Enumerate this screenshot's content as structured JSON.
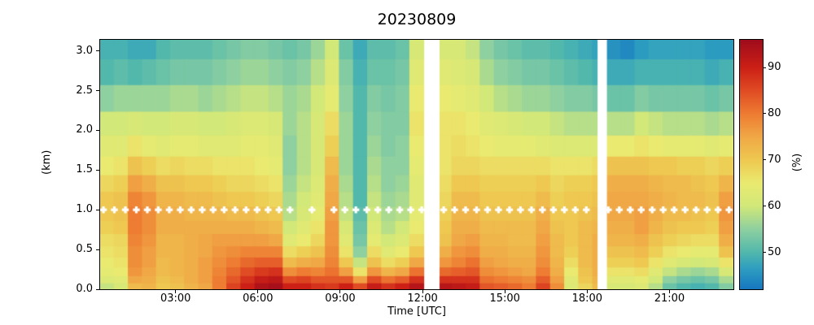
{
  "title": "20230809",
  "axes": {
    "xlabel": "Time [UTC]",
    "ylabel": "(km)",
    "x_range_hours": [
      0.25,
      23.33
    ],
    "y_range_km": [
      0,
      3.14
    ],
    "x_ticks": [
      {
        "t": 3,
        "label": "03:00"
      },
      {
        "t": 6,
        "label": "06:00"
      },
      {
        "t": 9,
        "label": "09:00"
      },
      {
        "t": 12,
        "label": "12:00"
      },
      {
        "t": 15,
        "label": "15:00"
      },
      {
        "t": 18,
        "label": "18:00"
      },
      {
        "t": 21,
        "label": "21:00"
      }
    ],
    "y_ticks": [
      {
        "v": 0.0,
        "label": "0.0"
      },
      {
        "v": 0.5,
        "label": "0.5"
      },
      {
        "v": 1.0,
        "label": "1.0"
      },
      {
        "v": 1.5,
        "label": "1.5"
      },
      {
        "v": 2.0,
        "label": "2.0"
      },
      {
        "v": 2.5,
        "label": "2.5"
      },
      {
        "v": 3.0,
        "label": "3.0"
      }
    ]
  },
  "colorbar": {
    "label": "(%)",
    "vmin": 42,
    "vmax": 96,
    "ticks": [
      {
        "v": 50,
        "label": "50"
      },
      {
        "v": 60,
        "label": "60"
      },
      {
        "v": 70,
        "label": "70"
      },
      {
        "v": 80,
        "label": "80"
      },
      {
        "v": 90,
        "label": "90"
      }
    ],
    "stops": [
      [
        42,
        "#1778c0"
      ],
      [
        46.5,
        "#2f9fc0"
      ],
      [
        50,
        "#52b8ac"
      ],
      [
        55,
        "#8fd0a0"
      ],
      [
        60,
        "#d2e878"
      ],
      [
        65,
        "#eaea70"
      ],
      [
        70,
        "#eec850"
      ],
      [
        75,
        "#f0a846"
      ],
      [
        80,
        "#ee7c32"
      ],
      [
        85,
        "#e04c24"
      ],
      [
        90,
        "#cc2016"
      ],
      [
        96,
        "#a00c1c"
      ]
    ]
  },
  "chart_data": {
    "type": "heatmap",
    "title": "20230809",
    "xlabel": "Time [UTC]",
    "ylabel": "(km)",
    "unit": "%",
    "value_range": [
      42,
      96
    ],
    "col_start_hour": 0.25,
    "col_width_hours": 0.5129,
    "row_centers_km": [
      0.04,
      0.12,
      0.22,
      0.34,
      0.47,
      0.62,
      0.78,
      0.95,
      1.13,
      1.33,
      1.55,
      1.8,
      2.08,
      2.4,
      2.75,
      3.05
    ],
    "columns": [
      [
        59,
        62,
        64,
        65,
        66,
        67,
        69,
        70,
        70,
        68,
        65,
        63,
        60,
        55,
        50,
        49
      ],
      [
        61,
        63,
        65,
        66,
        67,
        68,
        70,
        71,
        71,
        69,
        66,
        63,
        60,
        56,
        51,
        49
      ],
      [
        72,
        75,
        77,
        78,
        78,
        79,
        80,
        80,
        79,
        76,
        71,
        66,
        61,
        56,
        50,
        48
      ],
      [
        73,
        74,
        75,
        76,
        76,
        77,
        78,
        78,
        77,
        74,
        69,
        64,
        60,
        56,
        51,
        48
      ],
      [
        70,
        71,
        72,
        72,
        73,
        73,
        74,
        74,
        73,
        71,
        67,
        63,
        60,
        56,
        52,
        50
      ],
      [
        71,
        72,
        73,
        73,
        73,
        73,
        74,
        74,
        73,
        71,
        68,
        64,
        61,
        57,
        53,
        51
      ],
      [
        73,
        74,
        74,
        74,
        74,
        74,
        74,
        73,
        72,
        70,
        67,
        64,
        61,
        57,
        53,
        51
      ],
      [
        75,
        76,
        76,
        76,
        75,
        75,
        74,
        73,
        72,
        70,
        67,
        63,
        60,
        56,
        53,
        51
      ],
      [
        80,
        80,
        79,
        78,
        77,
        76,
        74,
        73,
        71,
        69,
        66,
        63,
        60,
        57,
        54,
        52
      ],
      [
        86,
        84,
        82,
        80,
        78,
        76,
        74,
        72,
        70,
        68,
        66,
        63,
        61,
        58,
        55,
        53
      ],
      [
        90,
        88,
        85,
        82,
        79,
        76,
        74,
        72,
        70,
        68,
        66,
        64,
        62,
        59,
        56,
        54
      ],
      [
        94,
        91,
        87,
        83,
        79,
        76,
        73,
        71,
        69,
        67,
        65,
        64,
        62,
        59,
        56,
        54
      ],
      [
        95,
        92,
        88,
        83,
        79,
        75,
        72,
        70,
        68,
        66,
        64,
        63,
        61,
        58,
        55,
        53
      ],
      [
        90,
        85,
        78,
        72,
        67,
        63,
        60,
        58,
        57,
        56,
        55,
        55,
        56,
        56,
        54,
        52
      ],
      [
        90,
        86,
        80,
        74,
        69,
        65,
        63,
        61,
        60,
        59,
        58,
        58,
        58,
        57,
        55,
        53
      ],
      [
        88,
        84,
        79,
        75,
        71,
        68,
        66,
        64,
        63,
        62,
        61,
        61,
        61,
        60,
        58,
        56
      ],
      [
        87,
        84,
        81,
        79,
        78,
        77,
        77,
        76,
        75,
        74,
        72,
        69,
        67,
        64,
        62,
        60
      ],
      [
        90,
        84,
        76,
        70,
        66,
        63,
        61,
        59,
        58,
        57,
        56,
        56,
        56,
        55,
        54,
        52
      ],
      [
        85,
        76,
        66,
        59,
        55,
        53,
        52,
        51,
        50,
        50,
        50,
        50,
        50,
        50,
        49,
        48
      ],
      [
        91,
        85,
        77,
        71,
        67,
        64,
        62,
        60,
        59,
        58,
        57,
        56,
        55,
        54,
        52,
        51
      ],
      [
        88,
        81,
        73,
        67,
        63,
        60,
        58,
        57,
        56,
        55,
        55,
        54,
        54,
        53,
        52,
        51
      ],
      [
        90,
        83,
        75,
        69,
        65,
        62,
        60,
        58,
        57,
        56,
        55,
        55,
        54,
        54,
        53,
        52
      ],
      [
        93,
        88,
        81,
        75,
        70,
        67,
        65,
        64,
        63,
        63,
        64,
        65,
        66,
        65,
        63,
        61
      ],
      [
        94,
        89,
        82,
        76,
        71,
        68,
        66,
        65,
        64,
        64,
        64,
        65,
        66,
        65,
        63,
        61
      ],
      [
        93,
        88,
        82,
        77,
        74,
        71,
        70,
        69,
        68,
        67,
        66,
        66,
        66,
        65,
        63,
        61
      ],
      [
        92,
        88,
        83,
        79,
        77,
        75,
        74,
        73,
        72,
        70,
        68,
        67,
        66,
        64,
        62,
        61
      ],
      [
        91,
        88,
        84,
        81,
        78,
        76,
        74,
        73,
        72,
        70,
        68,
        66,
        65,
        63,
        61,
        59
      ],
      [
        84,
        81,
        78,
        76,
        74,
        73,
        72,
        71,
        70,
        69,
        67,
        65,
        63,
        60,
        57,
        55
      ],
      [
        83,
        80,
        77,
        75,
        74,
        73,
        72,
        71,
        70,
        69,
        67,
        64,
        62,
        58,
        55,
        53
      ],
      [
        82,
        79,
        76,
        74,
        73,
        72,
        72,
        71,
        70,
        69,
        67,
        64,
        61,
        57,
        54,
        52
      ],
      [
        80,
        78,
        75,
        74,
        73,
        72,
        72,
        71,
        70,
        69,
        67,
        64,
        60,
        56,
        53,
        51
      ],
      [
        86,
        83,
        80,
        78,
        77,
        76,
        75,
        74,
        72,
        70,
        67,
        63,
        60,
        56,
        53,
        51
      ],
      [
        78,
        76,
        74,
        73,
        72,
        72,
        71,
        70,
        69,
        68,
        66,
        62,
        59,
        55,
        52,
        50
      ],
      [
        62,
        63,
        65,
        67,
        69,
        70,
        70,
        70,
        70,
        69,
        66,
        62,
        58,
        54,
        51,
        49
      ],
      [
        68,
        70,
        71,
        72,
        72,
        72,
        72,
        71,
        70,
        69,
        66,
        62,
        58,
        54,
        50,
        48
      ],
      [
        72,
        73,
        74,
        74,
        74,
        74,
        73,
        72,
        71,
        70,
        67,
        62,
        58,
        53,
        49,
        47
      ],
      [
        61,
        63,
        66,
        69,
        71,
        73,
        74,
        75,
        75,
        74,
        71,
        65,
        58,
        52,
        48,
        45
      ],
      [
        61,
        63,
        66,
        69,
        71,
        73,
        74,
        75,
        75,
        74,
        71,
        65,
        58,
        52,
        48,
        44
      ],
      [
        62,
        64,
        67,
        70,
        72,
        74,
        76,
        76,
        75,
        74,
        71,
        66,
        60,
        54,
        49,
        46
      ],
      [
        58,
        60,
        63,
        66,
        69,
        71,
        73,
        74,
        74,
        73,
        70,
        65,
        59,
        53,
        49,
        47
      ],
      [
        52,
        55,
        59,
        63,
        66,
        69,
        71,
        72,
        73,
        72,
        70,
        64,
        58,
        53,
        49,
        47
      ],
      [
        50,
        53,
        57,
        61,
        65,
        68,
        70,
        72,
        72,
        72,
        69,
        64,
        58,
        53,
        49,
        47
      ],
      [
        49,
        52,
        56,
        60,
        64,
        67,
        70,
        71,
        72,
        71,
        69,
        64,
        58,
        53,
        49,
        47
      ],
      [
        50,
        53,
        57,
        61,
        64,
        67,
        69,
        70,
        71,
        70,
        68,
        63,
        57,
        52,
        48,
        46
      ],
      [
        54,
        57,
        61,
        66,
        71,
        74,
        76,
        77,
        76,
        73,
        69,
        64,
        58,
        53,
        49,
        46
      ]
    ],
    "gaps_hours": [
      [
        12.06,
        12.62
      ],
      [
        18.38,
        18.72
      ]
    ],
    "dots": {
      "altitude_km": 1.0,
      "marker": "white-plus",
      "times_hours": [
        0.37,
        0.77,
        1.17,
        1.57,
        1.97,
        2.37,
        2.77,
        3.17,
        3.57,
        3.97,
        4.37,
        4.77,
        5.17,
        5.57,
        5.97,
        6.37,
        6.77,
        7.17,
        7.97,
        8.77,
        9.17,
        9.57,
        9.97,
        10.37,
        10.77,
        11.17,
        11.57,
        11.97,
        12.77,
        13.17,
        13.57,
        13.97,
        14.37,
        14.77,
        15.17,
        15.57,
        15.97,
        16.37,
        16.77,
        17.17,
        17.57,
        17.97,
        18.77,
        19.17,
        19.57,
        19.97,
        20.37,
        20.77,
        21.17,
        21.57,
        21.97,
        22.37,
        22.77,
        23.17
      ]
    }
  }
}
